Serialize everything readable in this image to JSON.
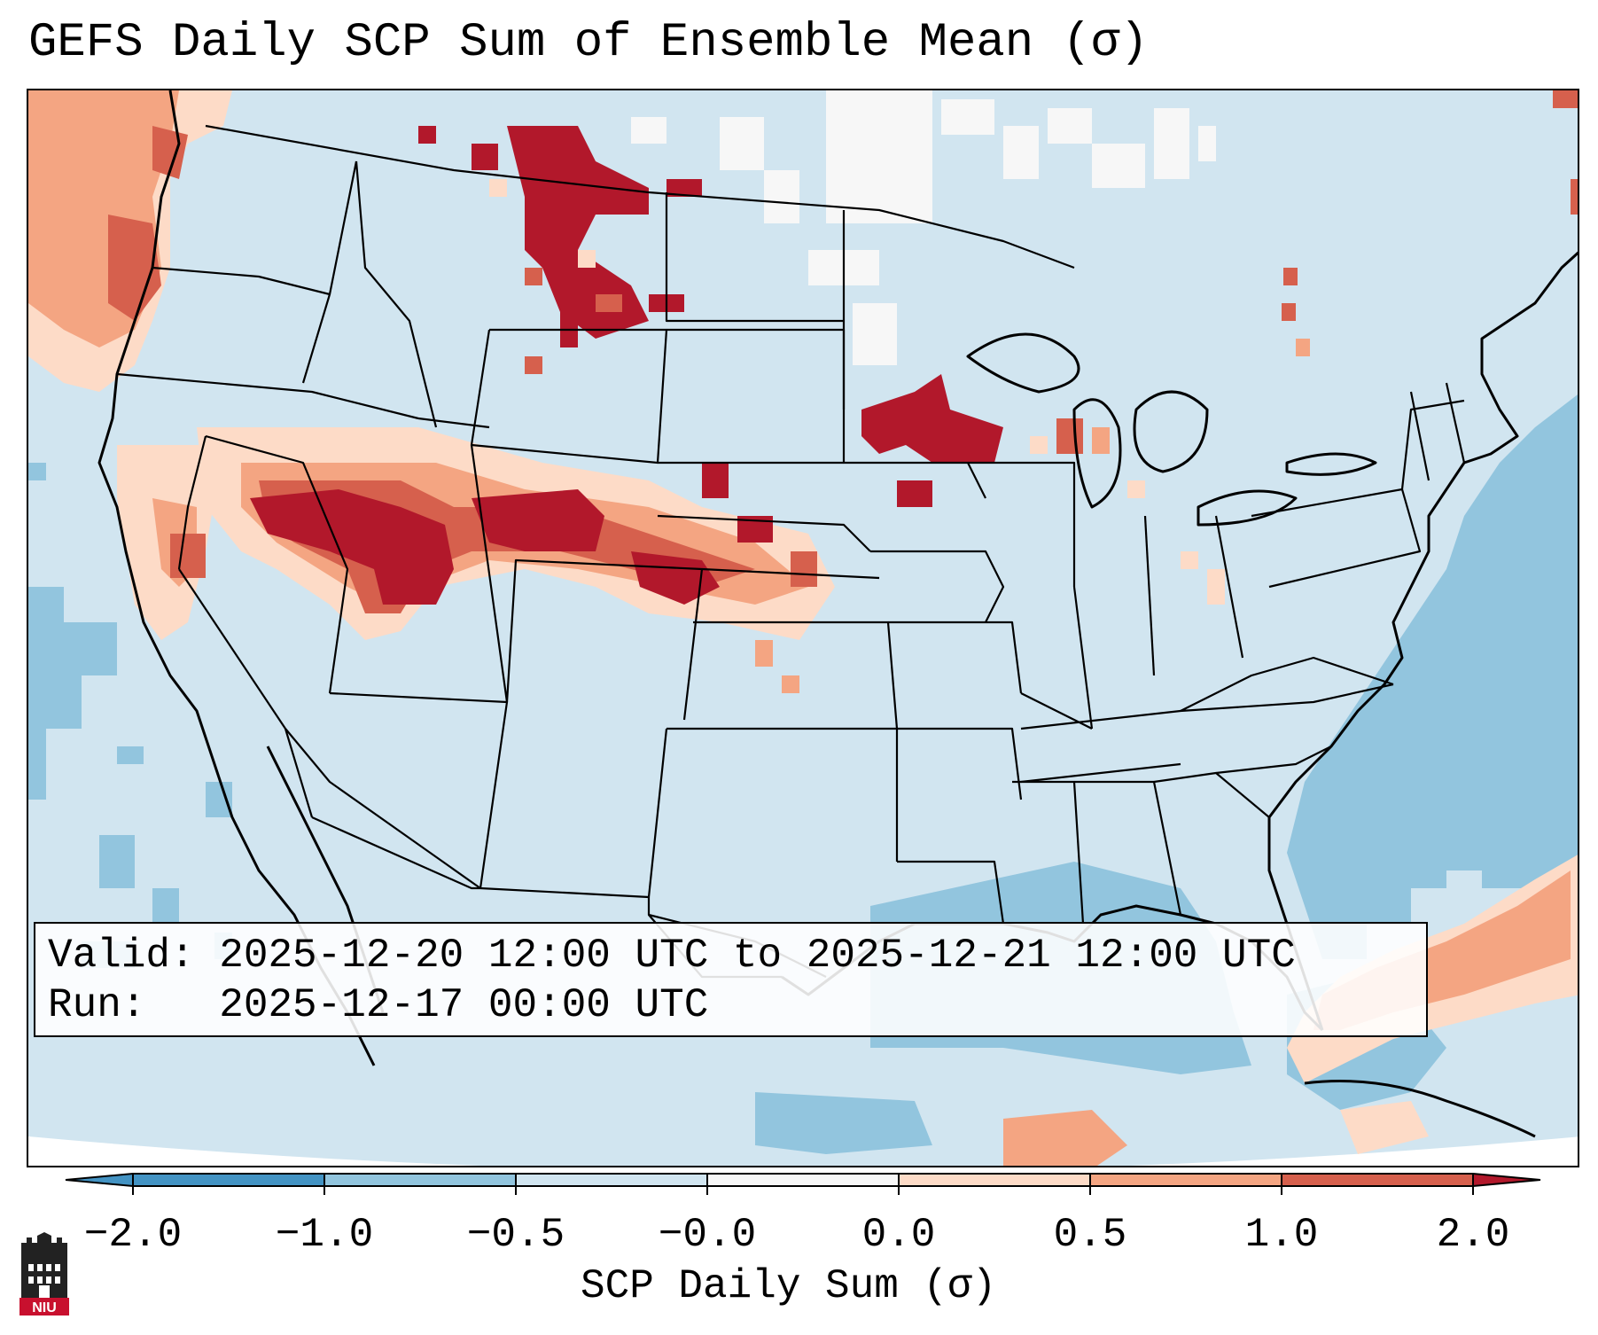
{
  "title": "GEFS Daily SCP Sum of Ensemble Mean (σ)",
  "info_box": {
    "valid_line": "Valid: 2025-12-20 12:00 UTC to 2025-12-21 12:00 UTC",
    "run_line": "Run:   2025-12-17 00:00 UTC"
  },
  "colorbar": {
    "label": "SCP Daily Sum (σ)",
    "ticks": [
      "−2.0",
      "−1.0",
      "−0.5",
      "−0.0",
      "0.0",
      "0.5",
      "1.0",
      "2.0"
    ],
    "colors": [
      "#4393c3",
      "#92c5de",
      "#d1e5f0",
      "#f7f7f7",
      "#fddbc7",
      "#f4a582",
      "#d6604d",
      "#b2182b"
    ],
    "extend": "both"
  },
  "logo": {
    "text": "NIU",
    "icon": "niu-castle-logo-icon"
  },
  "map": {
    "region": "Continental United States",
    "projection": "Lambert conformal"
  }
}
